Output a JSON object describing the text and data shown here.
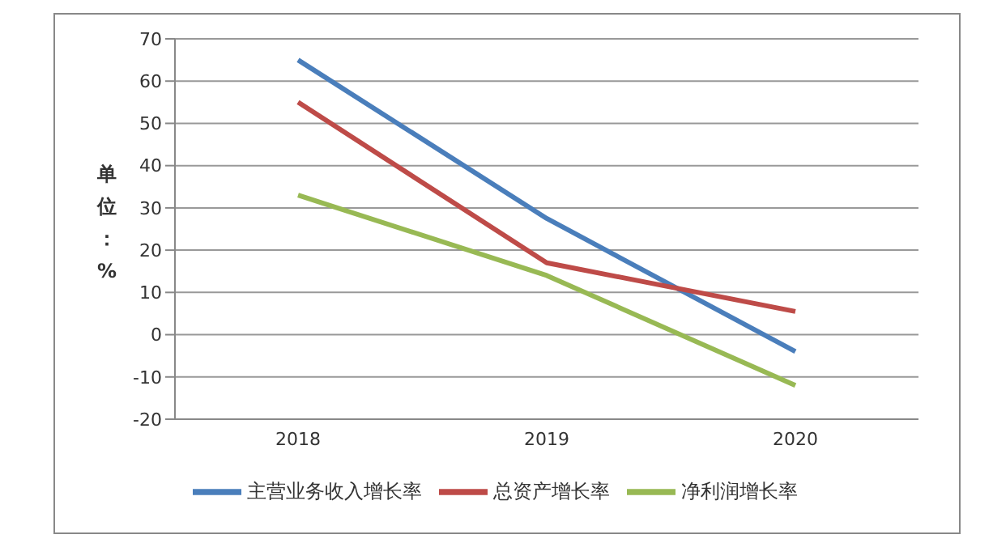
{
  "chart_data": {
    "type": "line",
    "ylabel": "单位：%",
    "categories": [
      "2018",
      "2019",
      "2020"
    ],
    "series": [
      {
        "name": "主营业务收入增长率",
        "color": "#4a7ebb",
        "values": [
          65,
          27.5,
          -4
        ]
      },
      {
        "name": "总资产增长率",
        "color": "#be4b48",
        "values": [
          55,
          17,
          5.5
        ]
      },
      {
        "name": "净利润增长率",
        "color": "#98b954",
        "values": [
          33,
          14,
          -12
        ]
      }
    ],
    "ylim": [
      -20,
      70
    ],
    "yticks": [
      -20,
      -10,
      0,
      10,
      20,
      30,
      40,
      50,
      60,
      70
    ],
    "grid": "y",
    "legend": "bottom",
    "marker": "none",
    "line_style": "solid"
  }
}
